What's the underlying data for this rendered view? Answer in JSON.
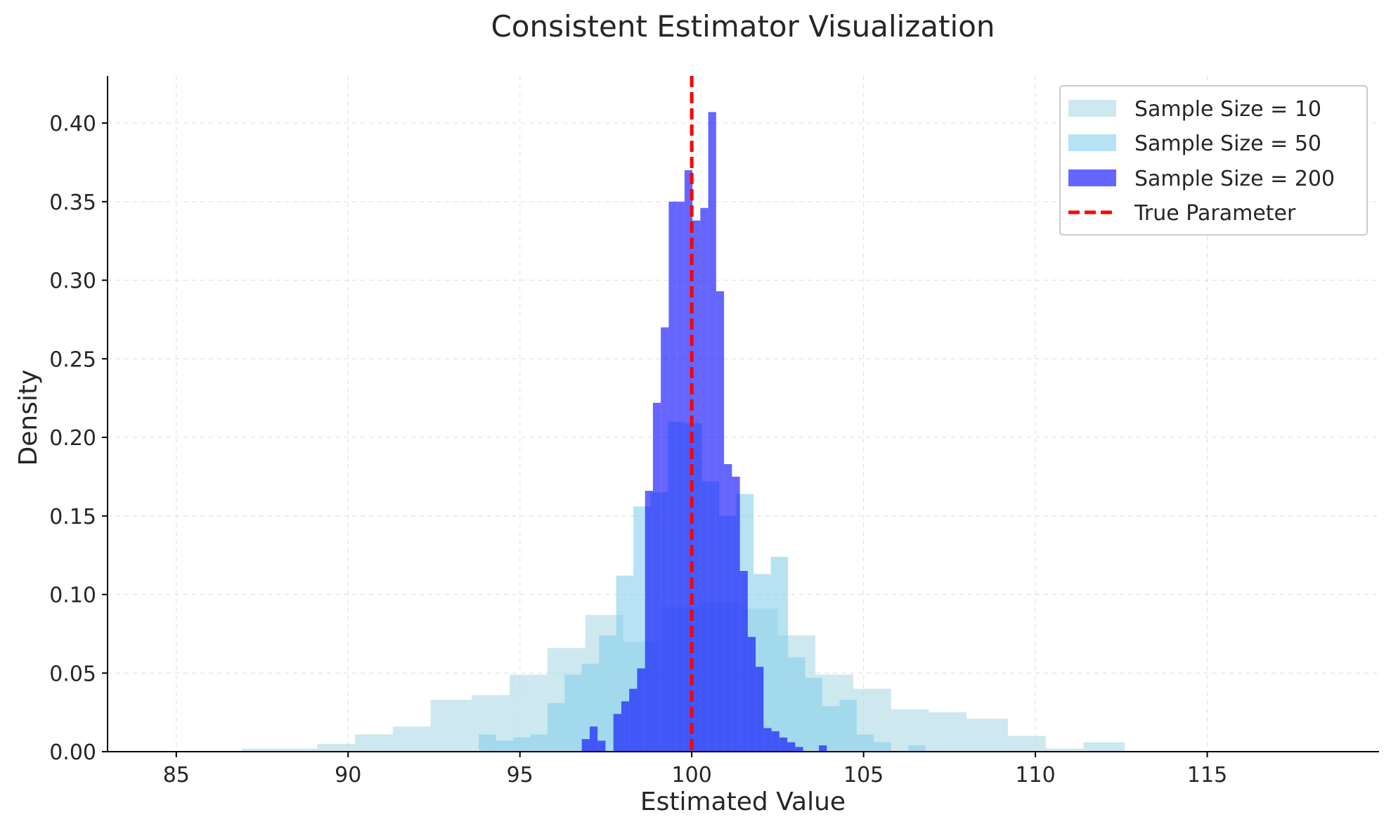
{
  "chart_data": {
    "type": "histogram",
    "title": "Consistent Estimator Visualization",
    "xlabel": "Estimated Value",
    "ylabel": "Density",
    "xlim": [
      83,
      120
    ],
    "ylim": [
      0,
      0.43
    ],
    "xticks": [
      85,
      90,
      95,
      100,
      105,
      110,
      115
    ],
    "yticks": [
      0.0,
      0.05,
      0.1,
      0.15,
      0.2,
      0.25,
      0.3,
      0.35,
      0.4
    ],
    "xtick_labels": [
      "85",
      "90",
      "95",
      "100",
      "105",
      "110",
      "115"
    ],
    "ytick_labels": [
      "0.00",
      "0.05",
      "0.10",
      "0.15",
      "0.20",
      "0.25",
      "0.30",
      "0.35",
      "0.40"
    ],
    "grid": true,
    "legend_position": "top-right",
    "series": [
      {
        "name": "Sample Size = 10",
        "color": "#add8e6",
        "opacity": 0.6,
        "bins": [
          [
            86.9,
            88.0,
            0.002
          ],
          [
            88.0,
            89.1,
            0.002
          ],
          [
            89.1,
            90.2,
            0.005
          ],
          [
            90.2,
            91.3,
            0.011
          ],
          [
            91.3,
            92.4,
            0.016
          ],
          [
            92.4,
            93.6,
            0.033
          ],
          [
            93.6,
            94.7,
            0.036
          ],
          [
            94.7,
            95.8,
            0.049
          ],
          [
            95.8,
            96.9,
            0.066
          ],
          [
            96.9,
            98.0,
            0.087
          ],
          [
            98.0,
            99.1,
            0.07
          ],
          [
            99.1,
            100.2,
            0.092
          ],
          [
            100.2,
            101.4,
            0.095
          ],
          [
            101.4,
            102.5,
            0.091
          ],
          [
            102.5,
            103.6,
            0.074
          ],
          [
            103.6,
            104.7,
            0.049
          ],
          [
            104.7,
            105.8,
            0.04
          ],
          [
            105.8,
            106.9,
            0.027
          ],
          [
            106.9,
            108.0,
            0.025
          ],
          [
            108.0,
            109.2,
            0.021
          ],
          [
            109.2,
            110.3,
            0.01
          ],
          [
            110.3,
            111.4,
            0.002
          ],
          [
            111.4,
            112.6,
            0.006
          ]
        ]
      },
      {
        "name": "Sample Size = 50",
        "color": "#87ceeb",
        "opacity": 0.6,
        "bins": [
          [
            93.8,
            94.3,
            0.011
          ],
          [
            94.3,
            94.8,
            0.007
          ],
          [
            94.8,
            95.3,
            0.009
          ],
          [
            95.3,
            95.8,
            0.011
          ],
          [
            95.8,
            96.3,
            0.031
          ],
          [
            96.3,
            96.8,
            0.049
          ],
          [
            96.8,
            97.3,
            0.056
          ],
          [
            97.3,
            97.8,
            0.074
          ],
          [
            97.8,
            98.3,
            0.112
          ],
          [
            98.3,
            98.8,
            0.156
          ],
          [
            98.8,
            99.3,
            0.165
          ],
          [
            99.3,
            99.8,
            0.21
          ],
          [
            99.8,
            100.3,
            0.209
          ],
          [
            100.3,
            100.8,
            0.172
          ],
          [
            100.8,
            101.3,
            0.15
          ],
          [
            101.3,
            101.8,
            0.164
          ],
          [
            101.8,
            102.3,
            0.113
          ],
          [
            102.3,
            102.8,
            0.124
          ],
          [
            102.8,
            103.3,
            0.06
          ],
          [
            103.3,
            103.8,
            0.047
          ],
          [
            103.8,
            104.3,
            0.029
          ],
          [
            104.3,
            104.8,
            0.033
          ],
          [
            104.8,
            105.3,
            0.011
          ],
          [
            105.3,
            105.8,
            0.006
          ],
          [
            105.8,
            106.3,
            0.0
          ],
          [
            106.3,
            106.8,
            0.004
          ]
        ]
      },
      {
        "name": "Sample Size = 200",
        "color": "#0000ff",
        "opacity": 0.6,
        "bins": [
          [
            96.8,
            97.03,
            0.008
          ],
          [
            97.03,
            97.26,
            0.016
          ],
          [
            97.26,
            97.49,
            0.007
          ],
          [
            97.49,
            97.72,
            0.0
          ],
          [
            97.72,
            97.95,
            0.024
          ],
          [
            97.95,
            98.18,
            0.032
          ],
          [
            98.18,
            98.41,
            0.04
          ],
          [
            98.41,
            98.64,
            0.053
          ],
          [
            98.64,
            98.87,
            0.166
          ],
          [
            98.87,
            99.1,
            0.222
          ],
          [
            99.1,
            99.33,
            0.27
          ],
          [
            99.33,
            99.56,
            0.35
          ],
          [
            99.56,
            99.79,
            0.35
          ],
          [
            99.79,
            100.02,
            0.37
          ],
          [
            100.02,
            100.25,
            0.338
          ],
          [
            100.25,
            100.48,
            0.346
          ],
          [
            100.48,
            100.71,
            0.407
          ],
          [
            100.71,
            100.94,
            0.293
          ],
          [
            100.94,
            101.17,
            0.183
          ],
          [
            101.17,
            101.4,
            0.175
          ],
          [
            101.4,
            101.63,
            0.115
          ],
          [
            101.63,
            101.86,
            0.073
          ],
          [
            101.86,
            102.09,
            0.054
          ],
          [
            102.09,
            102.32,
            0.015
          ],
          [
            102.32,
            102.55,
            0.013
          ],
          [
            102.55,
            102.78,
            0.009
          ],
          [
            102.78,
            103.01,
            0.006
          ],
          [
            103.01,
            103.24,
            0.003
          ],
          [
            103.24,
            103.47,
            0.0
          ],
          [
            103.47,
            103.7,
            0.0
          ],
          [
            103.7,
            103.93,
            0.004
          ]
        ]
      }
    ],
    "reference_line": {
      "name": "True Parameter",
      "x": 100,
      "color": "#ff0000",
      "style": "dashed"
    }
  }
}
